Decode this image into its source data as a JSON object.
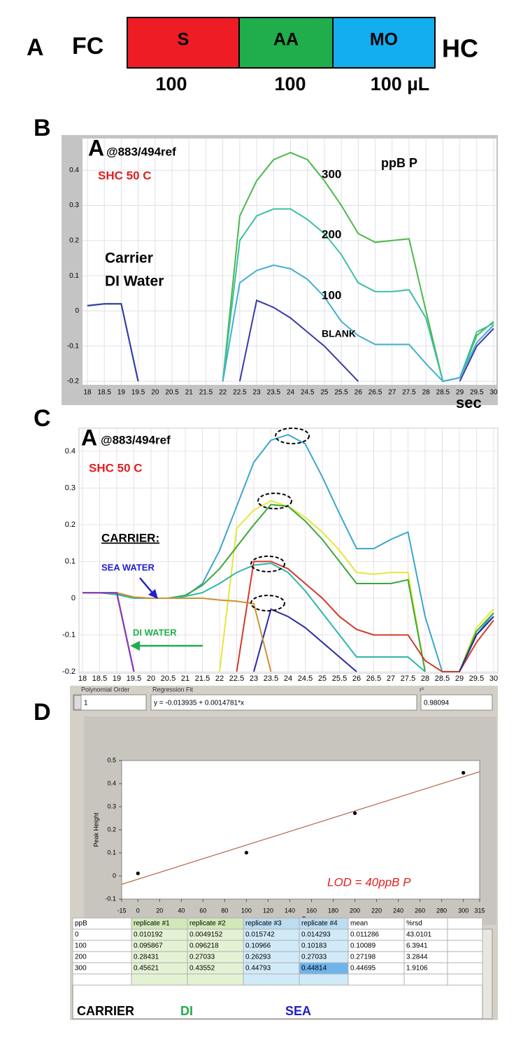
{
  "panel_a": {
    "label": "A",
    "left": "FC",
    "right": "HC",
    "segments": [
      {
        "name": "S",
        "volume": "100",
        "color": "#ee1c24"
      },
      {
        "name": "AA",
        "volume": "100",
        "color": "#1fae4b"
      },
      {
        "name": "MO",
        "volume": "100 µL",
        "color": "#13aef0"
      }
    ]
  },
  "chart_data": [
    {
      "type": "line",
      "panel": "B",
      "title_symbol": "A",
      "title": "@883/494ref",
      "subtitle": "SHC 50 C",
      "legend_title": "ppB P",
      "annotations": [
        "Carrier",
        "DI  Water"
      ],
      "xlabel": "sec",
      "grid": true,
      "x": [
        18,
        18.5,
        19,
        19.5,
        20,
        20.5,
        21,
        21.5,
        22,
        22.5,
        23,
        23.5,
        24,
        24.5,
        25,
        25.5,
        26,
        26.5,
        27,
        27.5,
        28,
        28.5,
        29,
        29.5,
        30
      ],
      "xlim": [
        18,
        30
      ],
      "xticks": [
        18,
        18.5,
        19,
        19.5,
        20,
        20.5,
        21,
        21.5,
        22,
        22.5,
        23,
        23.5,
        24,
        24.5,
        25,
        25.5,
        26,
        26.5,
        27,
        27.5,
        28,
        28.5,
        29,
        29.5,
        30
      ],
      "ylim": [
        -0.21,
        0.49
      ],
      "yticks": [
        -0.2,
        -0.1,
        0,
        0.1,
        0.2,
        0.3,
        0.4
      ],
      "series": [
        {
          "name": "300",
          "color": "#4cb848",
          "values": [
            0.015,
            0.02,
            0.02,
            -0.2,
            null,
            null,
            null,
            null,
            -0.2,
            0.27,
            0.37,
            0.43,
            0.45,
            0.43,
            0.37,
            0.3,
            0.22,
            0.195,
            0.2,
            0.205,
            0.0,
            -0.2,
            -0.19,
            -0.07,
            -0.03
          ]
        },
        {
          "name": "200",
          "color": "#3cc0a0",
          "values": [
            0.015,
            0.02,
            0.02,
            -0.2,
            null,
            null,
            null,
            null,
            -0.2,
            0.2,
            0.27,
            0.29,
            0.29,
            0.26,
            0.22,
            0.16,
            0.08,
            0.055,
            0.055,
            0.06,
            -0.02,
            -0.2,
            -0.19,
            -0.06,
            -0.035
          ]
        },
        {
          "name": "100",
          "color": "#40b0d0",
          "values": [
            0.015,
            0.02,
            0.02,
            -0.2,
            null,
            null,
            null,
            null,
            -0.2,
            0.08,
            0.115,
            0.13,
            0.12,
            0.09,
            0.04,
            -0.03,
            -0.07,
            -0.095,
            -0.095,
            -0.095,
            -0.15,
            -0.2,
            -0.19,
            -0.09,
            -0.04
          ]
        },
        {
          "name": "BLANK",
          "color": "#3a3aa8",
          "values": [
            0.015,
            0.02,
            0.02,
            -0.2,
            null,
            null,
            null,
            null,
            null,
            -0.2,
            0.03,
            0.01,
            -0.02,
            -0.06,
            -0.1,
            -0.15,
            -0.2,
            null,
            null,
            null,
            null,
            null,
            -0.2,
            -0.1,
            -0.05
          ]
        }
      ]
    },
    {
      "type": "line",
      "panel": "C",
      "title_symbol": "A",
      "title": "@883/494ref",
      "subtitle": "SHC 50 C",
      "annotations": [
        "CARRIER:",
        "SEA WATER",
        "DI WATER"
      ],
      "grid": true,
      "x": [
        18,
        18.5,
        19,
        19.5,
        20,
        20.5,
        21,
        21.5,
        22,
        22.5,
        23,
        23.5,
        24,
        24.5,
        25,
        25.5,
        26,
        26.5,
        27,
        27.5,
        28,
        28.5,
        29,
        29.5,
        30
      ],
      "xlim": [
        18,
        30
      ],
      "xticks": [
        18,
        18.5,
        19,
        19.5,
        20,
        20.5,
        21,
        21.5,
        22,
        22.5,
        23,
        23.5,
        24,
        24.5,
        25,
        25.5,
        26,
        26.5,
        27,
        27.5,
        28,
        28.5,
        29,
        29.5,
        30
      ],
      "ylim": [
        -0.2,
        0.457
      ],
      "yticks": [
        -0.2,
        -0.1,
        0,
        0.1,
        0.2,
        0.3,
        0.4
      ],
      "series": [
        {
          "color": "#3aa6cf",
          "values": [
            0.015,
            0.015,
            0.012,
            0.001,
            0.0,
            0.0,
            0.005,
            0.04,
            0.13,
            0.25,
            0.37,
            0.43,
            0.445,
            0.42,
            0.33,
            0.23,
            0.135,
            0.135,
            0.16,
            0.18,
            -0.05,
            -0.2,
            -0.2,
            -0.1,
            -0.04
          ]
        },
        {
          "color": "#e6e63a",
          "values": [
            0.015,
            0.015,
            0.01,
            -0.2,
            null,
            null,
            null,
            null,
            -0.2,
            0.19,
            0.24,
            0.265,
            0.25,
            0.22,
            0.18,
            0.13,
            0.07,
            0.065,
            0.07,
            0.07,
            -0.2,
            null,
            -0.2,
            -0.08,
            -0.03
          ]
        },
        {
          "color": "#3aa83a",
          "values": [
            0.015,
            0.015,
            0.01,
            0.0,
            0.0,
            0.0,
            0.008,
            0.035,
            0.08,
            0.14,
            0.2,
            0.255,
            0.25,
            0.21,
            0.16,
            0.1,
            0.04,
            0.04,
            0.04,
            0.05,
            -0.2,
            null,
            -0.2,
            -0.09,
            -0.04
          ]
        },
        {
          "color": "#2ab8a8",
          "values": [
            0.015,
            0.015,
            0.01,
            0.0,
            0.0,
            0.0,
            0.005,
            0.015,
            0.04,
            0.07,
            0.09,
            0.095,
            0.07,
            0.02,
            -0.04,
            -0.1,
            -0.16,
            -0.16,
            -0.16,
            -0.16,
            -0.2,
            null,
            -0.2,
            -0.1,
            -0.05
          ]
        },
        {
          "color": "#d03a2a",
          "values": [
            0.015,
            0.015,
            0.015,
            -0.2,
            null,
            null,
            null,
            null,
            null,
            -0.2,
            0.1,
            0.1,
            0.08,
            0.04,
            0.0,
            -0.05,
            -0.085,
            -0.1,
            -0.1,
            -0.1,
            -0.17,
            -0.2,
            -0.2,
            -0.12,
            -0.06
          ]
        },
        {
          "color": "#2a2aa0",
          "values": [
            0.015,
            0.015,
            0.015,
            -0.2,
            null,
            null,
            null,
            null,
            null,
            null,
            -0.2,
            -0.03,
            -0.05,
            -0.08,
            -0.12,
            -0.16,
            -0.2,
            null,
            null,
            null,
            null,
            null,
            -0.2,
            -0.1,
            -0.05
          ]
        },
        {
          "color": "#d09030",
          "values": [
            0.015,
            0.015,
            0.015,
            0.003,
            0.0,
            0.0,
            0.0,
            0.0,
            -0.005,
            -0.008,
            -0.015,
            -0.2,
            null,
            null,
            null,
            null,
            null,
            null,
            null,
            null,
            null,
            null,
            null,
            null,
            null
          ]
        },
        {
          "color": "#8a3ac8",
          "values": [
            0.015,
            0.015,
            0.015,
            -0.2,
            null,
            null,
            null,
            null,
            null,
            null,
            null,
            null,
            null,
            null,
            null,
            null,
            null,
            null,
            null,
            null,
            null,
            null,
            null,
            null,
            null
          ]
        }
      ]
    },
    {
      "type": "scatter",
      "panel": "D",
      "xlabel": "ppB",
      "ylabel": "Peak Height",
      "grid": false,
      "order_label": "Polynomial Order",
      "order": 1,
      "fit_label": "Regression Fit",
      "r2_label": "r²",
      "r2": 0.98094,
      "fit": {
        "label": "y = -0.013935 + 0.0014781*x",
        "intercept": -0.013935,
        "slope": 0.0014781,
        "color": "#b5654a"
      },
      "annotation": "LOD = 40ppB P",
      "color": "#000000",
      "x": [
        0,
        100,
        200,
        300
      ],
      "values": [
        0.011286,
        0.10089,
        0.27198,
        0.44695
      ],
      "xlim": [
        -15,
        315
      ],
      "xticks": [
        -15,
        0,
        20,
        40,
        60,
        80,
        100,
        120,
        140,
        160,
        180,
        200,
        220,
        240,
        260,
        280,
        300,
        315
      ],
      "ylim": [
        -0.1,
        0.5
      ],
      "yticks": [
        -0.1,
        0,
        0.1,
        0.2,
        0.3,
        0.4,
        0.5
      ]
    }
  ],
  "table": {
    "columns": [
      "ppB",
      "replicate #1",
      "replicate #2",
      "replicate #3",
      "replicate #4",
      "mean",
      "%rsd"
    ],
    "rows": [
      [
        0,
        0.010192,
        0.0049152,
        0.015742,
        0.014293,
        0.011286,
        43.0101
      ],
      [
        100,
        0.095867,
        0.096218,
        0.10966,
        0.10183,
        0.10089,
        6.3941
      ],
      [
        200,
        0.28431,
        0.27033,
        0.26293,
        0.27033,
        0.27198,
        3.2844
      ],
      [
        300,
        0.45621,
        0.43552,
        0.44793,
        0.44814,
        0.44695,
        1.9106
      ]
    ],
    "groups": [
      {
        "name": "CARRIER",
        "color": "#000000"
      },
      {
        "name": "DI",
        "color": "#1fae4b"
      },
      {
        "name": "SEA",
        "color": "#2020c0"
      }
    ]
  }
}
